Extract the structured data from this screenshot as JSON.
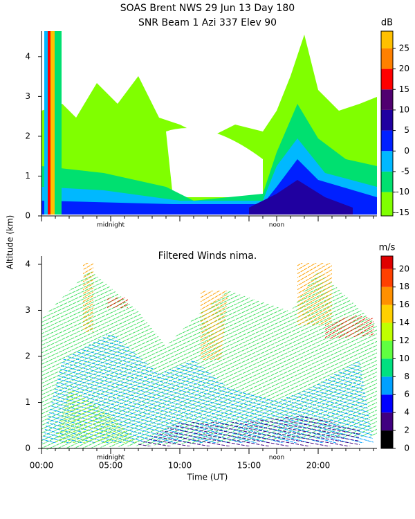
{
  "title_lines": [
    "SOAS Brent NWS  29 Jun 13 Day 180",
    "SNR Beam 1 Azi 337 Elev 90"
  ],
  "y_axis_label": "Altitude (km)",
  "x_axis_label": "Time (UT)",
  "xlim": [
    0,
    24.25
  ],
  "xticks": [
    {
      "value": 0,
      "label": "00:00"
    },
    {
      "value": 5,
      "label": "05:00"
    },
    {
      "value": 10,
      "label": "10:00"
    },
    {
      "value": 15,
      "label": "15:00"
    },
    {
      "value": 20,
      "label": "20:00"
    }
  ],
  "xticks_minor": [
    1,
    2,
    3,
    4,
    6,
    7,
    8,
    9,
    11,
    12,
    13,
    14,
    16,
    17,
    18,
    19,
    21,
    22,
    23,
    24
  ],
  "markers": [
    {
      "label": "midnight",
      "value": 5
    },
    {
      "label": "noon",
      "value": 17
    }
  ],
  "panels": [
    {
      "ylim": [
        0,
        4.64
      ],
      "yticks": [
        0,
        1,
        2,
        3,
        4
      ],
      "colorbar": {
        "unit": "dB",
        "lim": [
          -15.8,
          29.2
        ],
        "ticks": [
          -15,
          -10,
          -5,
          0,
          5,
          10,
          15,
          20,
          25
        ],
        "colors": [
          "#80ff00",
          "#00e070",
          "#00b8ff",
          "#0020ff",
          "#2000a0",
          "#500070",
          "#ff0000",
          "#ff8000",
          "#ffc000"
        ]
      }
    },
    {
      "title": "Filtered Winds nima.",
      "ylim": [
        0,
        4.18
      ],
      "yticks": [
        0,
        1,
        2,
        3,
        4
      ],
      "colorbar": {
        "unit": "m/s",
        "lim": [
          0,
          21.45
        ],
        "ticks": [
          0,
          2,
          4,
          6,
          8,
          10,
          12,
          14,
          16,
          18,
          20
        ],
        "colors": [
          "#000000",
          "#400080",
          "#0000ff",
          "#00a0ff",
          "#00e080",
          "#60ff40",
          "#c0ff00",
          "#ffd000",
          "#ff9000",
          "#ff4000",
          "#e00000"
        ]
      }
    }
  ]
}
